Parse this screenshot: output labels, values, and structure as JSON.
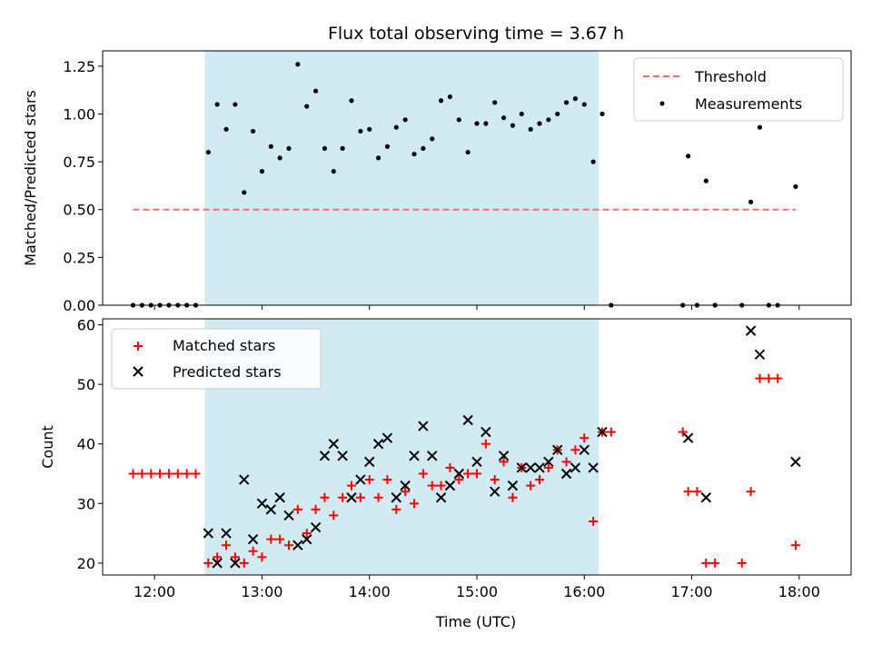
{
  "chart_data": {
    "title": "Flux total observing time = 3.67 h",
    "xlabel": "Time (UTC)",
    "x_ticks": [
      "12:00",
      "13:00",
      "14:00",
      "15:00",
      "16:00",
      "17:00",
      "18:00"
    ],
    "xlim": [
      "11:31",
      "18:29"
    ],
    "observing_window": [
      "12:28",
      "16:08"
    ],
    "colors": {
      "window": "#add8e6",
      "threshold": "#ff6b6b",
      "matched": "#ff0000",
      "predicted": "#000000",
      "measurements": "#000000"
    },
    "panels": [
      {
        "type": "scatter",
        "ylabel": "Matched/Predicted stars",
        "ylim": [
          0,
          1.33
        ],
        "y_ticks": [
          "0.00",
          "0.25",
          "0.50",
          "0.75",
          "1.00",
          "1.25"
        ],
        "legend": {
          "placement": "top-right",
          "entries": [
            "Threshold",
            "Measurements"
          ]
        },
        "threshold": {
          "name": "Threshold",
          "y": 0.5,
          "x_range": [
            "11:48",
            "17:58"
          ]
        },
        "series": [
          {
            "name": "Measurements",
            "points": [
              [
                "11:48",
                0
              ],
              [
                "11:53",
                0
              ],
              [
                "11:58",
                0
              ],
              [
                "12:03",
                0
              ],
              [
                "12:08",
                0
              ],
              [
                "12:13",
                0
              ],
              [
                "12:18",
                0
              ],
              [
                "12:23",
                0
              ],
              [
                "12:30",
                0.8
              ],
              [
                "12:35",
                1.05
              ],
              [
                "12:40",
                0.92
              ],
              [
                "12:45",
                1.05
              ],
              [
                "12:50",
                0.59
              ],
              [
                "12:55",
                0.91
              ],
              [
                "13:00",
                0.7
              ],
              [
                "13:05",
                0.83
              ],
              [
                "13:10",
                0.77
              ],
              [
                "13:15",
                0.82
              ],
              [
                "13:20",
                1.26
              ],
              [
                "13:25",
                1.04
              ],
              [
                "13:30",
                1.12
              ],
              [
                "13:35",
                0.82
              ],
              [
                "13:40",
                0.7
              ],
              [
                "13:45",
                0.82
              ],
              [
                "13:50",
                1.07
              ],
              [
                "13:55",
                0.91
              ],
              [
                "14:00",
                0.92
              ],
              [
                "14:05",
                0.77
              ],
              [
                "14:10",
                0.83
              ],
              [
                "14:15",
                0.93
              ],
              [
                "14:20",
                0.97
              ],
              [
                "14:25",
                0.79
              ],
              [
                "14:30",
                0.82
              ],
              [
                "14:35",
                0.87
              ],
              [
                "14:40",
                1.07
              ],
              [
                "14:45",
                1.09
              ],
              [
                "14:50",
                0.97
              ],
              [
                "14:55",
                0.8
              ],
              [
                "15:00",
                0.95
              ],
              [
                "15:05",
                0.95
              ],
              [
                "15:10",
                1.06
              ],
              [
                "15:15",
                0.98
              ],
              [
                "15:20",
                0.94
              ],
              [
                "15:25",
                1.0
              ],
              [
                "15:30",
                0.92
              ],
              [
                "15:35",
                0.95
              ],
              [
                "15:40",
                0.97
              ],
              [
                "15:45",
                1.0
              ],
              [
                "15:50",
                1.06
              ],
              [
                "15:55",
                1.08
              ],
              [
                "16:00",
                1.05
              ],
              [
                "16:05",
                0.75
              ],
              [
                "16:10",
                1.0
              ],
              [
                "16:15",
                0
              ],
              [
                "16:55",
                0
              ],
              [
                "16:58",
                0.78
              ],
              [
                "17:03",
                0
              ],
              [
                "17:08",
                0.65
              ],
              [
                "17:13",
                0
              ],
              [
                "17:28",
                0
              ],
              [
                "17:33",
                0.54
              ],
              [
                "17:38",
                0.93
              ],
              [
                "17:43",
                0
              ],
              [
                "17:48",
                0
              ],
              [
                "17:58",
                0.62
              ]
            ]
          }
        ]
      },
      {
        "type": "scatter",
        "ylabel": "Count",
        "ylim": [
          18,
          61
        ],
        "y_ticks": [
          "20",
          "30",
          "40",
          "50",
          "60"
        ],
        "legend": {
          "placement": "top-left",
          "entries": [
            "Matched stars",
            "Predicted stars"
          ]
        },
        "series": [
          {
            "name": "Matched stars",
            "marker": "plus",
            "points": [
              [
                "11:48",
                35
              ],
              [
                "11:53",
                35
              ],
              [
                "11:58",
                35
              ],
              [
                "12:03",
                35
              ],
              [
                "12:08",
                35
              ],
              [
                "12:13",
                35
              ],
              [
                "12:18",
                35
              ],
              [
                "12:23",
                35
              ],
              [
                "12:30",
                20
              ],
              [
                "12:35",
                21
              ],
              [
                "12:40",
                23
              ],
              [
                "12:45",
                21
              ],
              [
                "12:50",
                20
              ],
              [
                "12:55",
                22
              ],
              [
                "13:00",
                21
              ],
              [
                "13:05",
                24
              ],
              [
                "13:10",
                24
              ],
              [
                "13:15",
                23
              ],
              [
                "13:20",
                29
              ],
              [
                "13:25",
                25
              ],
              [
                "13:30",
                29
              ],
              [
                "13:35",
                31
              ],
              [
                "13:40",
                28
              ],
              [
                "13:45",
                31
              ],
              [
                "13:50",
                33
              ],
              [
                "13:55",
                31
              ],
              [
                "14:00",
                34
              ],
              [
                "14:05",
                31
              ],
              [
                "14:10",
                34
              ],
              [
                "14:15",
                29
              ],
              [
                "14:20",
                32
              ],
              [
                "14:25",
                30
              ],
              [
                "14:30",
                35
              ],
              [
                "14:35",
                33
              ],
              [
                "14:40",
                33
              ],
              [
                "14:45",
                36
              ],
              [
                "14:50",
                34
              ],
              [
                "14:55",
                35
              ],
              [
                "15:00",
                35
              ],
              [
                "15:05",
                40
              ],
              [
                "15:10",
                34
              ],
              [
                "15:15",
                37
              ],
              [
                "15:20",
                31
              ],
              [
                "15:25",
                36
              ],
              [
                "15:30",
                33
              ],
              [
                "15:35",
                34
              ],
              [
                "15:40",
                36
              ],
              [
                "15:45",
                39
              ],
              [
                "15:50",
                37
              ],
              [
                "15:55",
                39
              ],
              [
                "16:00",
                41
              ],
              [
                "16:05",
                27
              ],
              [
                "16:10",
                42
              ],
              [
                "16:15",
                42
              ],
              [
                "16:55",
                42
              ],
              [
                "16:58",
                32
              ],
              [
                "17:03",
                32
              ],
              [
                "17:08",
                20
              ],
              [
                "17:13",
                20
              ],
              [
                "17:28",
                20
              ],
              [
                "17:33",
                32
              ],
              [
                "17:38",
                51
              ],
              [
                "17:43",
                51
              ],
              [
                "17:48",
                51
              ],
              [
                "17:58",
                23
              ]
            ]
          },
          {
            "name": "Predicted stars",
            "marker": "x",
            "points": [
              [
                "12:30",
                25
              ],
              [
                "12:35",
                20
              ],
              [
                "12:40",
                25
              ],
              [
                "12:45",
                20
              ],
              [
                "12:50",
                34
              ],
              [
                "12:55",
                24
              ],
              [
                "13:00",
                30
              ],
              [
                "13:05",
                29
              ],
              [
                "13:10",
                31
              ],
              [
                "13:15",
                28
              ],
              [
                "13:20",
                23
              ],
              [
                "13:25",
                24
              ],
              [
                "13:30",
                26
              ],
              [
                "13:35",
                38
              ],
              [
                "13:40",
                40
              ],
              [
                "13:45",
                38
              ],
              [
                "13:50",
                31
              ],
              [
                "13:55",
                34
              ],
              [
                "14:00",
                37
              ],
              [
                "14:05",
                40
              ],
              [
                "14:10",
                41
              ],
              [
                "14:15",
                31
              ],
              [
                "14:20",
                33
              ],
              [
                "14:25",
                38
              ],
              [
                "14:30",
                43
              ],
              [
                "14:35",
                38
              ],
              [
                "14:40",
                31
              ],
              [
                "14:45",
                33
              ],
              [
                "14:50",
                35
              ],
              [
                "14:55",
                44
              ],
              [
                "15:00",
                37
              ],
              [
                "15:05",
                42
              ],
              [
                "15:10",
                32
              ],
              [
                "15:15",
                38
              ],
              [
                "15:20",
                33
              ],
              [
                "15:25",
                36
              ],
              [
                "15:30",
                36
              ],
              [
                "15:35",
                36
              ],
              [
                "15:40",
                37
              ],
              [
                "15:45",
                39
              ],
              [
                "15:50",
                35
              ],
              [
                "15:55",
                36
              ],
              [
                "16:00",
                39
              ],
              [
                "16:05",
                36
              ],
              [
                "16:10",
                42
              ],
              [
                "16:58",
                41
              ],
              [
                "17:08",
                31
              ],
              [
                "17:33",
                59
              ],
              [
                "17:38",
                55
              ],
              [
                "17:58",
                37
              ]
            ]
          }
        ]
      }
    ]
  }
}
